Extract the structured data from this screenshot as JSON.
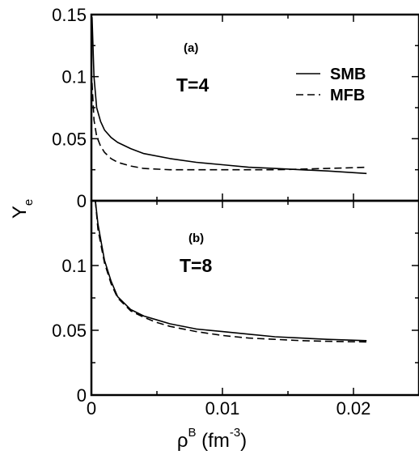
{
  "chart_data": {
    "type": "line",
    "xlabel": {
      "base": "ρ",
      "sup": "B",
      "unit_open": " (fm",
      "unit_sup": "-3",
      "unit_close": ")"
    },
    "ylabel": {
      "base": "Y",
      "sub": "e"
    },
    "xlim": [
      0,
      0.025
    ],
    "x_ticks": [
      0,
      0.01,
      0.02
    ],
    "x_tick_labels": [
      "0",
      "0.01",
      "0.02"
    ],
    "legend": {
      "position": "top-right",
      "entries": [
        {
          "name": "SMB",
          "style": "solid"
        },
        {
          "name": "MFB",
          "style": "dashed"
        }
      ]
    },
    "panels": [
      {
        "id": "a",
        "panel_label": "(a)",
        "temperature_label": "T=4",
        "ylim": [
          0,
          0.15
        ],
        "y_ticks": [
          0,
          0.05,
          0.1,
          0.15
        ],
        "y_tick_labels": [
          "0",
          "0.05",
          "0.1",
          "0.15"
        ],
        "series": [
          {
            "name": "SMB",
            "style": "solid",
            "x": [
              5e-05,
              0.0002,
              0.0004,
              0.0007,
              0.001,
              0.0015,
              0.002,
              0.003,
              0.004,
              0.006,
              0.008,
              0.01,
              0.012,
              0.014,
              0.016,
              0.018,
              0.021
            ],
            "y": [
              0.148,
              0.1,
              0.075,
              0.064,
              0.057,
              0.051,
              0.047,
              0.042,
              0.038,
              0.034,
              0.031,
              0.029,
              0.027,
              0.026,
              0.025,
              0.024,
              0.022
            ]
          },
          {
            "name": "MFB",
            "style": "dashed",
            "x": [
              5e-05,
              0.0002,
              0.0004,
              0.0007,
              0.001,
              0.0015,
              0.002,
              0.003,
              0.004,
              0.006,
              0.008,
              0.01,
              0.012,
              0.014,
              0.016,
              0.018,
              0.021
            ],
            "y": [
              0.095,
              0.065,
              0.052,
              0.044,
              0.039,
              0.034,
              0.031,
              0.028,
              0.026,
              0.025,
              0.025,
              0.025,
              0.025,
              0.025,
              0.0255,
              0.026,
              0.027
            ]
          }
        ]
      },
      {
        "id": "b",
        "panel_label": "(b)",
        "temperature_label": "T=8",
        "ylim": [
          0,
          0.15
        ],
        "y_ticks": [
          0,
          0.05,
          0.1
        ],
        "y_tick_labels": [
          "0",
          "0.05",
          "0.1"
        ],
        "series": [
          {
            "name": "SMB",
            "style": "solid",
            "x": [
              0.0003,
              0.0005,
              0.0008,
              0.001,
              0.0015,
              0.002,
              0.003,
              0.004,
              0.005,
              0.006,
              0.008,
              0.01,
              0.012,
              0.014,
              0.016,
              0.018,
              0.021
            ],
            "y": [
              0.15,
              0.132,
              0.115,
              0.104,
              0.088,
              0.076,
              0.066,
              0.061,
              0.058,
              0.055,
              0.051,
              0.049,
              0.047,
              0.045,
              0.044,
              0.043,
              0.042
            ]
          },
          {
            "name": "MFB",
            "style": "dashed",
            "x": [
              0.0003,
              0.0005,
              0.0008,
              0.001,
              0.0015,
              0.002,
              0.003,
              0.004,
              0.005,
              0.006,
              0.008,
              0.01,
              0.012,
              0.014,
              0.016,
              0.018,
              0.021
            ],
            "y": [
              0.15,
              0.128,
              0.112,
              0.102,
              0.086,
              0.075,
              0.065,
              0.06,
              0.056,
              0.053,
              0.049,
              0.046,
              0.044,
              0.043,
              0.042,
              0.0415,
              0.041
            ]
          }
        ]
      }
    ]
  }
}
